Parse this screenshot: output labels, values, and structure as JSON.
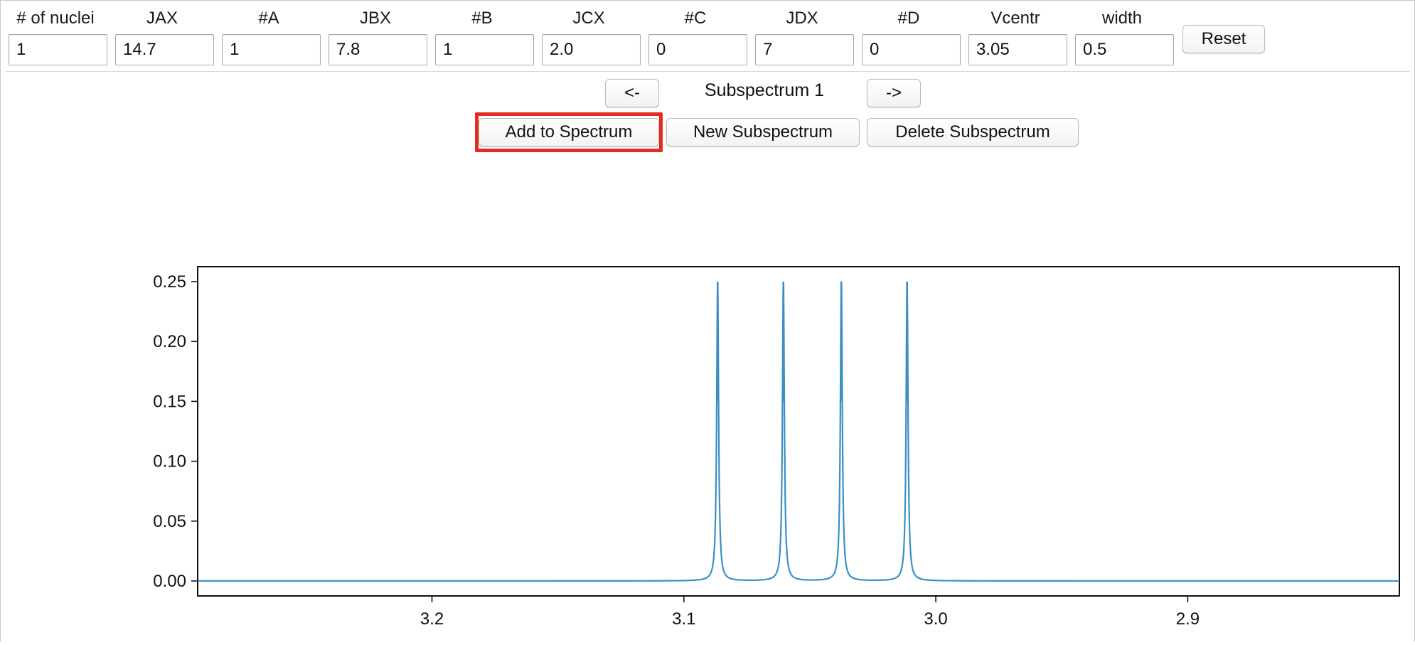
{
  "params": [
    {
      "label": "# of nuclei",
      "value": "1"
    },
    {
      "label": "JAX",
      "value": "14.7"
    },
    {
      "label": "#A",
      "value": "1"
    },
    {
      "label": "JBX",
      "value": "7.8"
    },
    {
      "label": "#B",
      "value": "1"
    },
    {
      "label": "JCX",
      "value": "2.0"
    },
    {
      "label": "#C",
      "value": "0"
    },
    {
      "label": "JDX",
      "value": "7"
    },
    {
      "label": "#D",
      "value": "0"
    },
    {
      "label": "Vcentr",
      "value": "3.05"
    },
    {
      "label": "width",
      "value": "0.5"
    }
  ],
  "toolbar": {
    "reset_label": "Reset",
    "prev_label": "<-",
    "next_label": "->",
    "subspectrum_label": "Subspectrum 1",
    "add_label": "Add to Spectrum",
    "new_label": "New Subspectrum",
    "delete_label": "Delete Subspectrum"
  },
  "colors": {
    "line": "#3b8fc4",
    "highlight": "#e62a1e"
  },
  "chart_data": {
    "type": "line",
    "title": "",
    "xlabel": "",
    "ylabel": "",
    "x_reversed": true,
    "xlim": [
      3.293,
      2.816
    ],
    "ylim": [
      -0.0125,
      0.2625
    ],
    "x_ticks": [
      "3.2",
      "3.1",
      "3.0",
      "2.9"
    ],
    "x_tick_values": [
      3.2,
      3.1,
      3.0,
      2.9
    ],
    "y_ticks": [
      "0.00",
      "0.05",
      "0.10",
      "0.15",
      "0.20",
      "0.25"
    ],
    "y_tick_values": [
      0.0,
      0.05,
      0.1,
      0.15,
      0.2,
      0.25
    ],
    "grid": false,
    "series": [
      {
        "peaks_ppm": [
          3.0866,
          3.0605,
          3.0375,
          3.0114
        ],
        "peak_height": 0.25,
        "baseline": 0.0
      }
    ]
  }
}
